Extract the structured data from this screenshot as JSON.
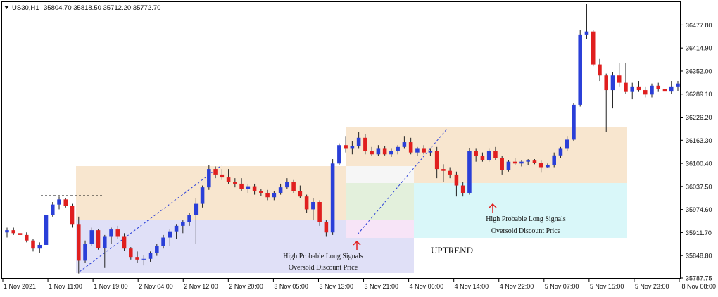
{
  "header": {
    "symbol": "US30,H1",
    "ohlc": "35804.70 35818.50 35712.20 35772.70",
    "menu_icon": "triangle-down-icon"
  },
  "annotations": {
    "signal_1_line1": "High Probable Long Signals",
    "signal_1_line2": "Oversold Discount Price",
    "signal_2_line1": "High Probable Long Signals",
    "signal_2_line2": "Oversold Discount Price",
    "trend_label": "UPTREND"
  },
  "colors": {
    "bull": "#2a3fd8",
    "bear": "#e01f1f",
    "wick": "#222222",
    "arrow": "#e01f1f",
    "zone_premium": "#f8e6cf",
    "zone_discount": "#e0e0f7",
    "zone_cyan": "#d9f7f9",
    "zone_green": "#e3f0dc",
    "zone_pink": "#f7e4f7",
    "trendline": "#2a3fd8"
  },
  "chart_data": {
    "type": "candlestick",
    "symbol": "US30",
    "timeframe": "H1",
    "ylim": [
      35787.75,
      36540
    ],
    "y_ticks": [
      "36477.80",
      "36414.90",
      "36352.00",
      "36289.10",
      "36226.20",
      "36163.30",
      "36100.40",
      "36037.50",
      "35974.60",
      "35911.70",
      "35848.80",
      "35787.75"
    ],
    "x_ticks": [
      "1 Nov 2021",
      "1 Nov 11:00",
      "1 Nov 19:00",
      "2 Nov 04:00",
      "2 Nov 12:00",
      "2 Nov 20:00",
      "3 Nov 05:00",
      "3 Nov 13:00",
      "3 Nov 21:00",
      "4 Nov 06:00",
      "4 Nov 14:00",
      "4 Nov 22:00",
      "5 Nov 07:00",
      "5 Nov 15:00",
      "5 Nov 23:00",
      "8 Nov 08:00"
    ],
    "candles": [
      [
        35912,
        35925,
        35898,
        35918
      ],
      [
        35918,
        35925,
        35905,
        35910
      ],
      [
        35910,
        35915,
        35895,
        35905
      ],
      [
        35905,
        35912,
        35885,
        35890
      ],
      [
        35890,
        35895,
        35860,
        35868
      ],
      [
        35868,
        35885,
        35855,
        35878
      ],
      [
        35878,
        35965,
        35875,
        35960
      ],
      [
        35960,
        35995,
        35955,
        35988
      ],
      [
        35988,
        36010,
        35975,
        36002
      ],
      [
        36002,
        36005,
        35980,
        35985
      ],
      [
        35985,
        35990,
        35925,
        35935
      ],
      [
        35935,
        35955,
        35800,
        35835
      ],
      [
        35835,
        35890,
        35830,
        35880
      ],
      [
        35880,
        35925,
        35875,
        35918
      ],
      [
        35918,
        35920,
        35865,
        35870
      ],
      [
        35870,
        35905,
        35815,
        35900
      ],
      [
        35900,
        35925,
        35880,
        35920
      ],
      [
        35920,
        35930,
        35895,
        35900
      ],
      [
        35900,
        35910,
        35862,
        35868
      ],
      [
        35868,
        35872,
        35838,
        35845
      ],
      [
        35845,
        35860,
        35830,
        35838
      ],
      [
        35838,
        35850,
        35822,
        35840
      ],
      [
        35840,
        35860,
        35832,
        35855
      ],
      [
        35855,
        35880,
        35848,
        35875
      ],
      [
        35875,
        35905,
        35868,
        35898
      ],
      [
        35898,
        35920,
        35875,
        35915
      ],
      [
        35915,
        35935,
        35895,
        35930
      ],
      [
        35930,
        35945,
        35910,
        35940
      ],
      [
        35940,
        35965,
        35930,
        35960
      ],
      [
        35960,
        36005,
        35880,
        35990
      ],
      [
        35990,
        36040,
        35980,
        36035
      ],
      [
        36035,
        36095,
        36028,
        36085
      ],
      [
        36085,
        36092,
        36060,
        36070
      ],
      [
        36070,
        36085,
        36055,
        36062
      ],
      [
        36062,
        36085,
        36045,
        36050
      ],
      [
        36050,
        36060,
        36035,
        36045
      ],
      [
        36045,
        36060,
        36025,
        36030
      ],
      [
        36030,
        36045,
        36020,
        36038
      ],
      [
        36038,
        36045,
        36015,
        36025
      ],
      [
        36025,
        36030,
        36012,
        36020
      ],
      [
        36020,
        36028,
        36000,
        36008
      ],
      [
        36008,
        36025,
        36000,
        36020
      ],
      [
        36020,
        36045,
        36015,
        36035
      ],
      [
        36035,
        36060,
        36030,
        36050
      ],
      [
        36050,
        36055,
        36020,
        36025
      ],
      [
        36025,
        36040,
        36005,
        36010
      ],
      [
        36010,
        36015,
        35965,
        35975
      ],
      [
        35975,
        36005,
        35945,
        35995
      ],
      [
        35995,
        36000,
        35930,
        35940
      ],
      [
        35940,
        35945,
        35900,
        35912
      ],
      [
        35912,
        36112,
        35905,
        36100
      ],
      [
        36100,
        36155,
        36095,
        36150
      ],
      [
        36150,
        36175,
        36130,
        36140
      ],
      [
        36140,
        36160,
        36125,
        36148
      ],
      [
        36148,
        36185,
        36140,
        36170
      ],
      [
        36170,
        36180,
        36125,
        36135
      ],
      [
        36135,
        36145,
        36120,
        36125
      ],
      [
        36125,
        36150,
        36120,
        36140
      ],
      [
        36140,
        36148,
        36122,
        36125
      ],
      [
        36125,
        36140,
        36118,
        36135
      ],
      [
        36135,
        36150,
        36125,
        36145
      ],
      [
        36145,
        36175,
        36140,
        36158
      ],
      [
        36158,
        36170,
        36125,
        36130
      ],
      [
        36130,
        36145,
        36120,
        36140
      ],
      [
        36140,
        36150,
        36125,
        36130
      ],
      [
        36130,
        36140,
        36120,
        36135
      ],
      [
        36135,
        36145,
        36060,
        36085
      ],
      [
        36085,
        36098,
        36050,
        36080
      ],
      [
        36080,
        36090,
        36060,
        36070
      ],
      [
        36070,
        36078,
        36010,
        36040
      ],
      [
        36040,
        36050,
        36010,
        36020
      ],
      [
        36020,
        36142,
        36015,
        36135
      ],
      [
        36135,
        36140,
        36105,
        36120
      ],
      [
        36120,
        36130,
        36105,
        36110
      ],
      [
        36110,
        36140,
        36105,
        36135
      ],
      [
        36135,
        36145,
        36110,
        36115
      ],
      [
        36115,
        36120,
        36070,
        36082
      ],
      [
        36082,
        36110,
        36078,
        36105
      ],
      [
        36105,
        36115,
        36095,
        36100
      ],
      [
        36100,
        36110,
        36092,
        36105
      ],
      [
        36105,
        36112,
        36095,
        36108
      ],
      [
        36108,
        36112,
        36098,
        36102
      ],
      [
        36102,
        36108,
        36075,
        36090
      ],
      [
        36090,
        36100,
        36088,
        36095
      ],
      [
        36095,
        36130,
        36090,
        36122
      ],
      [
        36122,
        36145,
        36115,
        36140
      ],
      [
        36140,
        36175,
        36135,
        36165
      ],
      [
        36165,
        36265,
        36160,
        36260
      ],
      [
        36260,
        36465,
        36255,
        36450
      ],
      [
        36450,
        36535,
        36440,
        36460
      ],
      [
        36460,
        36465,
        36365,
        36370
      ],
      [
        36370,
        36385,
        36325,
        36340
      ],
      [
        36340,
        36345,
        36185,
        36300
      ],
      [
        36300,
        36350,
        36250,
        36340
      ],
      [
        36340,
        36375,
        36310,
        36320
      ],
      [
        36320,
        36375,
        36290,
        36295
      ],
      [
        36295,
        36320,
        36275,
        36310
      ],
      [
        36310,
        36325,
        36295,
        36300
      ],
      [
        36300,
        36310,
        36280,
        36288
      ],
      [
        36288,
        36318,
        36280,
        36312
      ],
      [
        36312,
        36320,
        36295,
        36302
      ],
      [
        36302,
        36315,
        36288,
        36296
      ],
      [
        36296,
        36325,
        36290,
        36310
      ],
      [
        36310,
        36325,
        36298,
        36318
      ]
    ]
  }
}
